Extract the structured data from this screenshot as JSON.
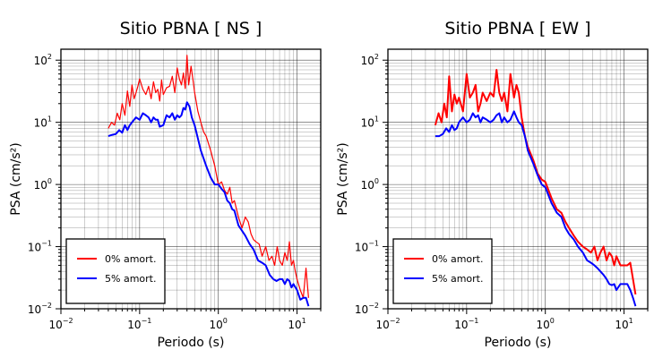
{
  "chart_data": [
    {
      "type": "line",
      "title": "Sitio PBNA [ NS ]",
      "xlabel": "Periodo (s)",
      "ylabel": "PSA (cm/s²)",
      "xscale": "log",
      "yscale": "log",
      "xlim": [
        0.01,
        20
      ],
      "ylim": [
        0.01,
        150
      ],
      "grid": true,
      "legend_position": "bottom-left",
      "x_ticks": [
        {
          "base": "10",
          "exp": "−2"
        },
        {
          "base": "10",
          "exp": "−1"
        },
        {
          "base": "10",
          "exp": "0"
        },
        {
          "base": "10",
          "exp": "1"
        }
      ],
      "y_ticks": [
        {
          "base": "10",
          "exp": "−2"
        },
        {
          "base": "10",
          "exp": "−1"
        },
        {
          "base": "10",
          "exp": "0"
        },
        {
          "base": "10",
          "exp": "1"
        },
        {
          "base": "10",
          "exp": "2"
        }
      ],
      "series": [
        {
          "name": "0% amort.",
          "color": "#ff0000",
          "x": [
            0.04,
            0.044,
            0.048,
            0.052,
            0.056,
            0.06,
            0.065,
            0.07,
            0.075,
            0.08,
            0.085,
            0.09,
            0.095,
            0.1,
            0.11,
            0.12,
            0.13,
            0.14,
            0.15,
            0.16,
            0.17,
            0.18,
            0.19,
            0.2,
            0.22,
            0.24,
            0.26,
            0.28,
            0.3,
            0.32,
            0.34,
            0.36,
            0.38,
            0.4,
            0.42,
            0.45,
            0.48,
            0.5,
            0.55,
            0.6,
            0.65,
            0.7,
            0.8,
            0.9,
            1.0,
            1.1,
            1.2,
            1.3,
            1.4,
            1.5,
            1.6,
            1.8,
            2.0,
            2.2,
            2.4,
            2.6,
            2.8,
            3.0,
            3.3,
            3.6,
            4.0,
            4.4,
            4.8,
            5.2,
            5.6,
            6.0,
            6.5,
            7.0,
            7.5,
            8.0,
            8.5,
            9.0,
            9.5,
            10,
            11,
            12,
            13,
            14
          ],
          "y": [
            8,
            10,
            9,
            14,
            11,
            20,
            13,
            32,
            18,
            40,
            24,
            30,
            38,
            50,
            34,
            28,
            38,
            24,
            45,
            30,
            34,
            22,
            48,
            28,
            36,
            38,
            55,
            30,
            75,
            50,
            40,
            62,
            35,
            120,
            40,
            80,
            45,
            30,
            15,
            10,
            7,
            6,
            3.5,
            2.0,
            1.0,
            1.1,
            0.8,
            0.7,
            0.9,
            0.5,
            0.55,
            0.3,
            0.2,
            0.3,
            0.25,
            0.16,
            0.13,
            0.12,
            0.11,
            0.07,
            0.1,
            0.06,
            0.07,
            0.05,
            0.1,
            0.06,
            0.05,
            0.08,
            0.06,
            0.12,
            0.05,
            0.06,
            0.04,
            0.03,
            0.02,
            0.015,
            0.045,
            0.015
          ]
        },
        {
          "name": "5% amort.",
          "color": "#0000ff",
          "x": [
            0.04,
            0.045,
            0.05,
            0.055,
            0.06,
            0.065,
            0.07,
            0.075,
            0.08,
            0.09,
            0.1,
            0.11,
            0.12,
            0.13,
            0.14,
            0.15,
            0.16,
            0.17,
            0.18,
            0.2,
            0.22,
            0.24,
            0.26,
            0.28,
            0.3,
            0.32,
            0.34,
            0.36,
            0.38,
            0.4,
            0.43,
            0.46,
            0.5,
            0.55,
            0.6,
            0.7,
            0.8,
            0.9,
            1.0,
            1.1,
            1.2,
            1.3,
            1.4,
            1.5,
            1.6,
            1.8,
            2.0,
            2.2,
            2.5,
            2.8,
            3.2,
            3.6,
            4.0,
            4.5,
            5.0,
            5.5,
            6.0,
            6.5,
            7.0,
            7.5,
            8.0,
            8.5,
            9.0,
            10,
            11,
            12,
            13,
            14
          ],
          "y": [
            6,
            6.3,
            6.5,
            7.5,
            6.8,
            9,
            7.5,
            9,
            10,
            12,
            11,
            14,
            13,
            12,
            10,
            12,
            11,
            11,
            8.5,
            9,
            13,
            12,
            14,
            11,
            13,
            12,
            13,
            17,
            16,
            21,
            18,
            12,
            9,
            5.5,
            3.5,
            2.0,
            1.3,
            1.0,
            1.0,
            0.85,
            0.75,
            0.55,
            0.5,
            0.4,
            0.38,
            0.22,
            0.18,
            0.15,
            0.11,
            0.09,
            0.06,
            0.055,
            0.05,
            0.035,
            0.03,
            0.028,
            0.03,
            0.03,
            0.025,
            0.03,
            0.028,
            0.022,
            0.025,
            0.02,
            0.014,
            0.015,
            0.015,
            0.011
          ]
        }
      ]
    },
    {
      "type": "line",
      "title": "Sitio PBNA [ EW ]",
      "xlabel": "Periodo (s)",
      "ylabel": "PSA (cm/s²)",
      "xscale": "log",
      "yscale": "log",
      "xlim": [
        0.01,
        20
      ],
      "ylim": [
        0.01,
        150
      ],
      "grid": true,
      "legend_position": "bottom-left",
      "x_ticks": [
        {
          "base": "10",
          "exp": "−2"
        },
        {
          "base": "10",
          "exp": "−1"
        },
        {
          "base": "10",
          "exp": "0"
        },
        {
          "base": "10",
          "exp": "1"
        }
      ],
      "y_ticks": [
        {
          "base": "10",
          "exp": "−2"
        },
        {
          "base": "10",
          "exp": "−1"
        },
        {
          "base": "10",
          "exp": "0"
        },
        {
          "base": "10",
          "exp": "1"
        },
        {
          "base": "10",
          "exp": "2"
        }
      ],
      "series": [
        {
          "name": "0% amort.",
          "color": "#ff0000",
          "x": [
            0.04,
            0.044,
            0.048,
            0.052,
            0.056,
            0.06,
            0.065,
            0.07,
            0.075,
            0.08,
            0.09,
            0.1,
            0.11,
            0.12,
            0.13,
            0.14,
            0.15,
            0.16,
            0.18,
            0.2,
            0.22,
            0.24,
            0.26,
            0.28,
            0.3,
            0.33,
            0.36,
            0.4,
            0.43,
            0.46,
            0.5,
            0.55,
            0.6,
            0.7,
            0.8,
            0.9,
            1.0,
            1.2,
            1.4,
            1.6,
            1.8,
            2.0,
            2.3,
            2.6,
            3.0,
            3.4,
            3.8,
            4.2,
            4.6,
            5.0,
            5.5,
            6.0,
            6.5,
            7.0,
            7.5,
            8.0,
            9.0,
            10,
            11,
            12,
            13,
            14
          ],
          "y": [
            9,
            14,
            10,
            20,
            12,
            55,
            15,
            28,
            20,
            25,
            15,
            60,
            25,
            30,
            40,
            15,
            20,
            30,
            22,
            30,
            26,
            70,
            30,
            22,
            30,
            15,
            60,
            25,
            40,
            30,
            12,
            6,
            4,
            2.5,
            1.5,
            1.2,
            1.1,
            0.6,
            0.4,
            0.35,
            0.25,
            0.2,
            0.15,
            0.12,
            0.1,
            0.09,
            0.08,
            0.1,
            0.06,
            0.08,
            0.1,
            0.06,
            0.08,
            0.07,
            0.05,
            0.07,
            0.05,
            0.05,
            0.05,
            0.055,
            0.03,
            0.017
          ]
        },
        {
          "name": "5% amort.",
          "color": "#0000ff",
          "x": [
            0.04,
            0.045,
            0.05,
            0.055,
            0.06,
            0.065,
            0.07,
            0.075,
            0.08,
            0.09,
            0.1,
            0.11,
            0.12,
            0.13,
            0.14,
            0.15,
            0.16,
            0.18,
            0.2,
            0.22,
            0.24,
            0.26,
            0.28,
            0.3,
            0.33,
            0.36,
            0.4,
            0.43,
            0.46,
            0.5,
            0.55,
            0.6,
            0.7,
            0.8,
            0.9,
            1.0,
            1.2,
            1.4,
            1.6,
            1.8,
            2.0,
            2.3,
            2.6,
            3.0,
            3.4,
            3.8,
            4.2,
            4.6,
            5.0,
            5.5,
            6.0,
            6.5,
            7.0,
            7.5,
            8.0,
            9.0,
            10,
            11,
            12,
            13,
            14
          ],
          "y": [
            6,
            6,
            6.5,
            8,
            7,
            9,
            7.5,
            8,
            10,
            12,
            10,
            11,
            14,
            12,
            13,
            10,
            12,
            11,
            10,
            11,
            13,
            14,
            10,
            12,
            10,
            11,
            15,
            12,
            10,
            9,
            6,
            3.5,
            2.2,
            1.4,
            1.0,
            0.9,
            0.5,
            0.35,
            0.3,
            0.2,
            0.16,
            0.13,
            0.1,
            0.08,
            0.06,
            0.055,
            0.05,
            0.045,
            0.04,
            0.035,
            0.03,
            0.025,
            0.024,
            0.025,
            0.02,
            0.025,
            0.025,
            0.025,
            0.02,
            0.015,
            0.011
          ]
        }
      ]
    }
  ]
}
